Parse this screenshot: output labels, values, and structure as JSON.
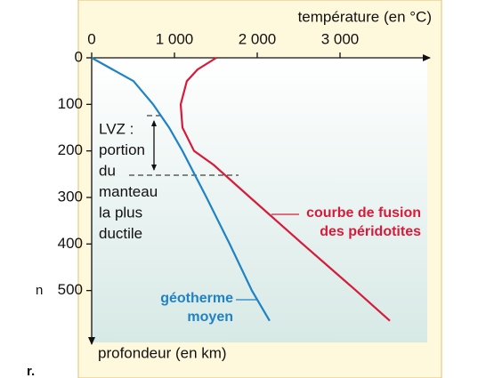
{
  "chart_data": {
    "type": "line",
    "x_label": "température (en °C)",
    "y_label": "profondeur (en km)",
    "xlim": [
      0,
      4000
    ],
    "ylim": [
      0,
      600
    ],
    "xticks": [
      0,
      {
        "value": 1000,
        "label": "1 000"
      },
      {
        "value": 2000,
        "label": "2 000"
      },
      {
        "value": 3000,
        "label": "3 000"
      }
    ],
    "yticks": [
      0,
      100,
      200,
      300,
      400,
      500
    ],
    "y_inverted": true,
    "series": [
      {
        "label_lines": [
          "géotherme",
          "moyen"
        ],
        "color": "#1f82c4",
        "x": [
          0,
          505,
          742,
          935,
          1097,
          1387,
          1667,
          1935,
          2150
        ],
        "values": [
          0,
          50,
          100,
          150,
          200,
          300,
          400,
          500,
          565
        ]
      },
      {
        "label_lines": [
          "courbe de fusion",
          "des péridotites"
        ],
        "color": "#d71a3a",
        "x": [
          1505,
          1280,
          1150,
          1075,
          1097,
          1237,
          1473,
          1914,
          2548,
          3194,
          3602
        ],
        "values": [
          0,
          25,
          50,
          100,
          150,
          200,
          230,
          300,
          400,
          500,
          565
        ]
      }
    ],
    "annotation_lines": [
      "LVZ :",
      "portion",
      "du",
      "manteau",
      "la plus",
      "ductile"
    ]
  },
  "fragments": [
    "n",
    "r."
  ]
}
